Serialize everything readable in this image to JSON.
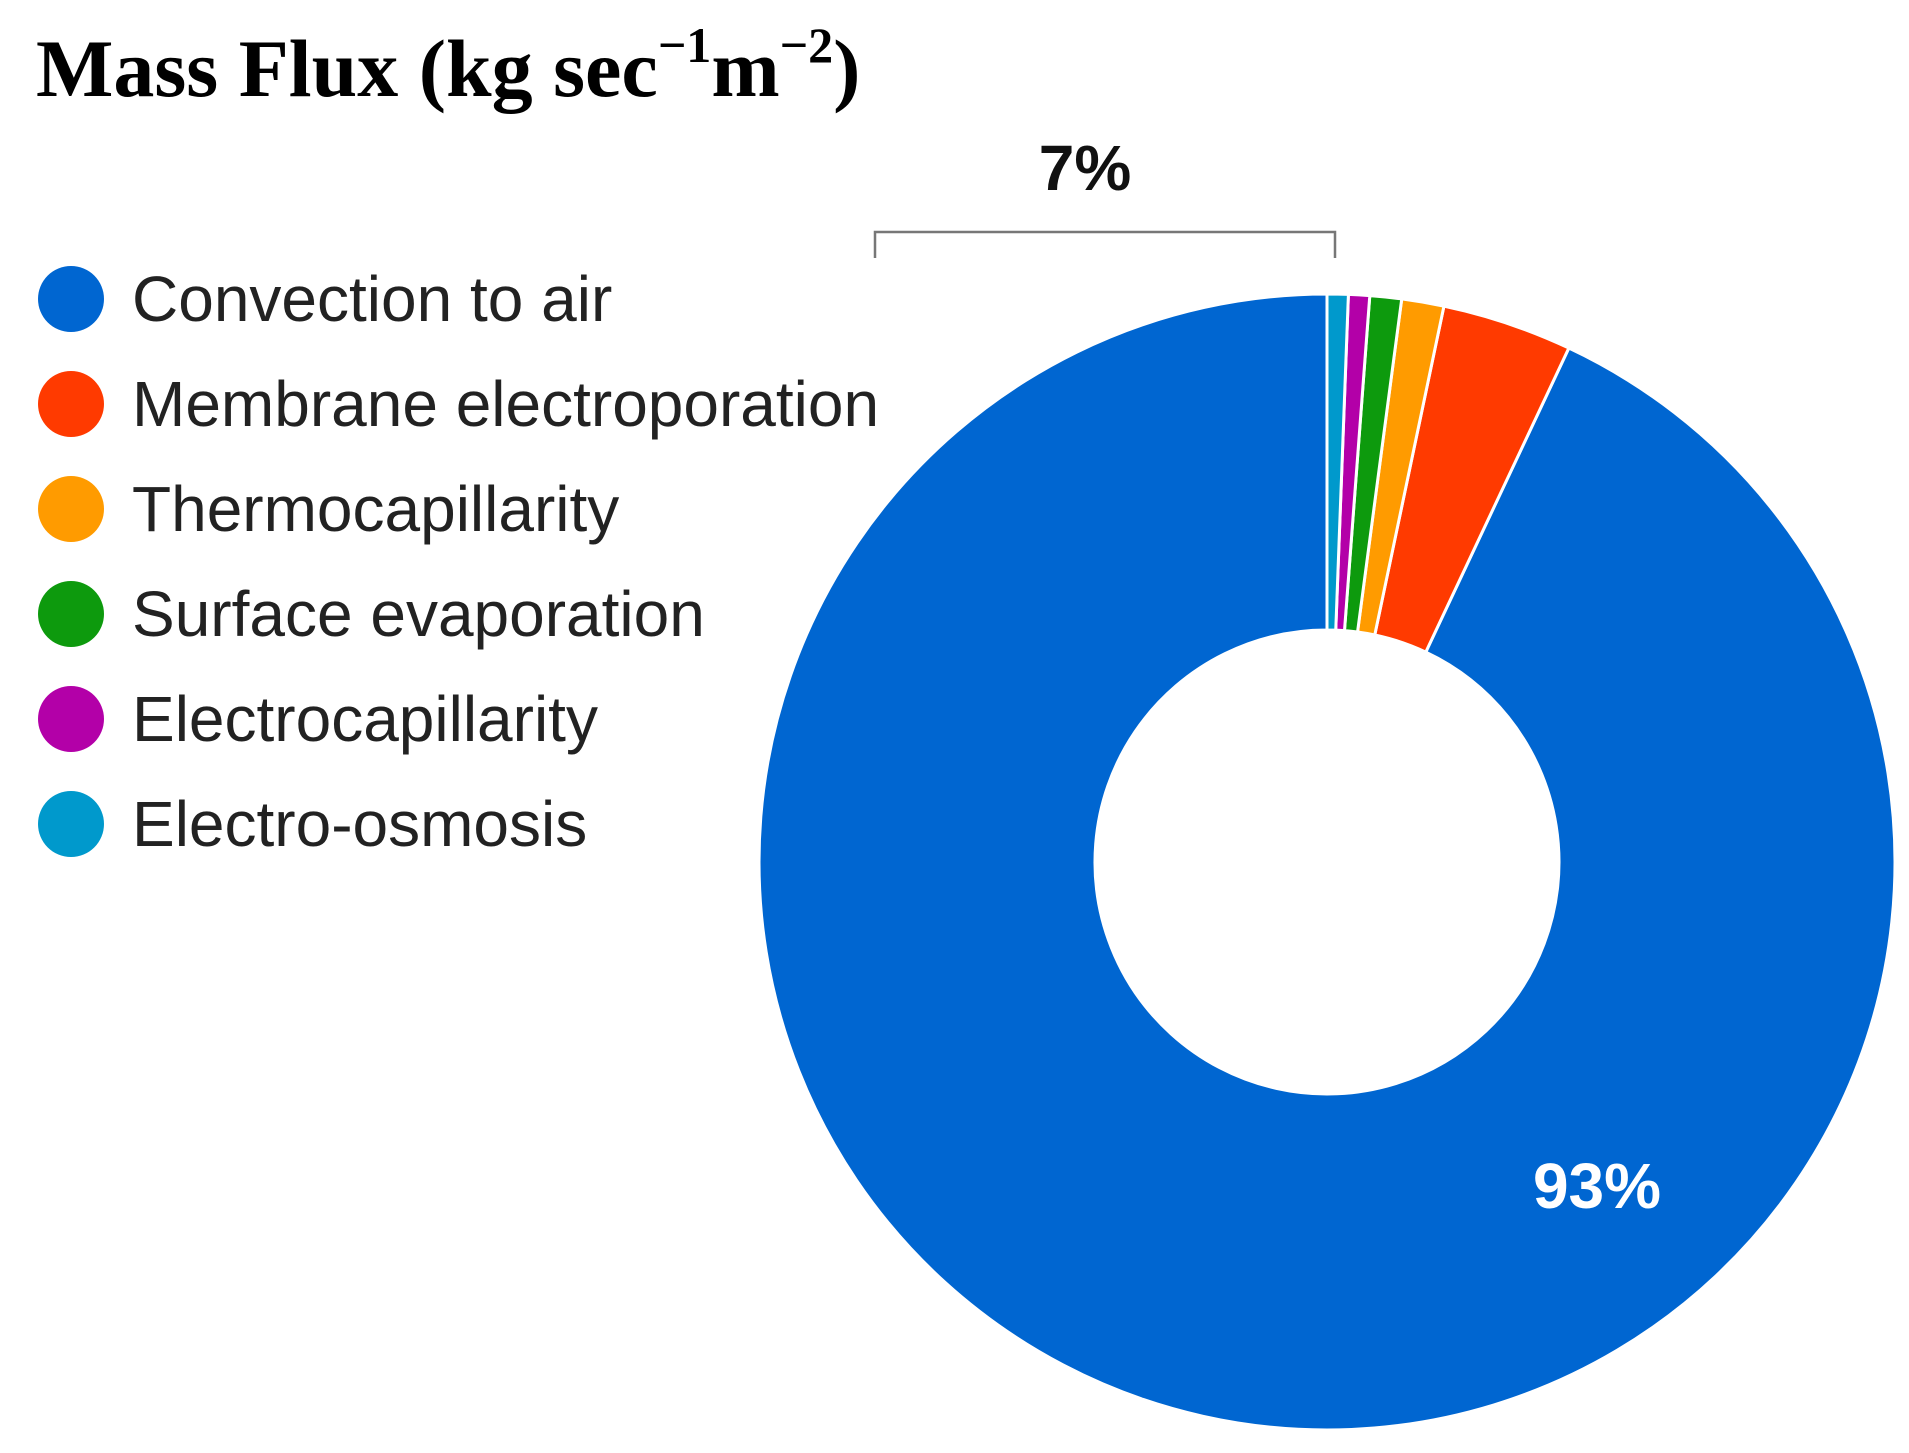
{
  "title": {
    "main": "Mass Flux (kg sec",
    "exp1": "−1",
    "unit2": "m",
    "exp2": "−2",
    "close": ")"
  },
  "chart_data": {
    "type": "pie",
    "title": "Mass Flux (kg sec−1m−2)",
    "donut": true,
    "legend_position": "left",
    "categories": [
      "Convection to air",
      "Membrane electroporation",
      "Thermocapillarity",
      "Surface evaporation",
      "Electrocapillarity",
      "Electro-osmosis"
    ],
    "values": [
      93.0,
      3.7,
      1.2,
      0.9,
      0.6,
      0.6
    ],
    "colors": [
      "#0066d1",
      "#ff3a00",
      "#ff9b00",
      "#0d9a0d",
      "#b300a8",
      "#0099cc"
    ],
    "annotations": {
      "major_label": "93%",
      "bracket_label": "7%"
    }
  }
}
